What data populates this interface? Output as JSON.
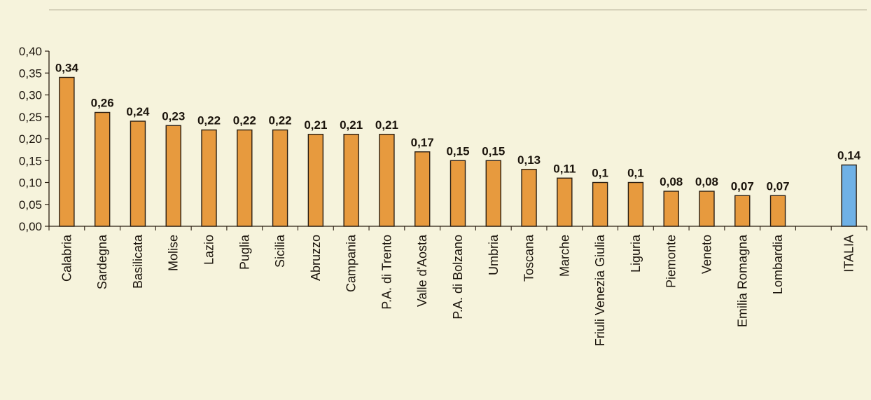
{
  "chart_data": {
    "type": "bar",
    "title": "",
    "xlabel": "",
    "ylabel": "",
    "ylim": [
      0,
      0.4
    ],
    "yticks": [
      "0,00",
      "0,05",
      "0,10",
      "0,15",
      "0,20",
      "0,25",
      "0,30",
      "0,35",
      "0,40"
    ],
    "grid": false,
    "categories": [
      "Calabria",
      "Sardegna",
      "Basilicata",
      "Molise",
      "Lazio",
      "Puglia",
      "Sicilia",
      "Abruzzo",
      "Campania",
      "P.A. di Trento",
      "Valle d'Aosta",
      "P.A. di Bolzano",
      "Umbria",
      "Toscana",
      "Marche",
      "Friuli Venezia Giulia",
      "Liguria",
      "Piemonte",
      "Veneto",
      "Emilia Romagna",
      "Lombardia",
      "ITALIA"
    ],
    "values": [
      0.34,
      0.26,
      0.24,
      0.23,
      0.22,
      0.22,
      0.22,
      0.21,
      0.21,
      0.21,
      0.17,
      0.15,
      0.15,
      0.13,
      0.11,
      0.1,
      0.1,
      0.08,
      0.08,
      0.07,
      0.07,
      0.14
    ],
    "data_labels": [
      "0,34",
      "0,26",
      "0,24",
      "0,23",
      "0,22",
      "0,22",
      "0,22",
      "0,21",
      "0,21",
      "0,21",
      "0,17",
      "0,15",
      "0,15",
      "0,13",
      "0,11",
      "0,1",
      "0,1",
      "0,08",
      "0,08",
      "0,07",
      "0,07",
      "0,14"
    ],
    "colors": {
      "regions": "#e79a3e",
      "italia": "#6fb1e6",
      "outline": "#2a1e12",
      "background": "#f6f3dc"
    }
  }
}
